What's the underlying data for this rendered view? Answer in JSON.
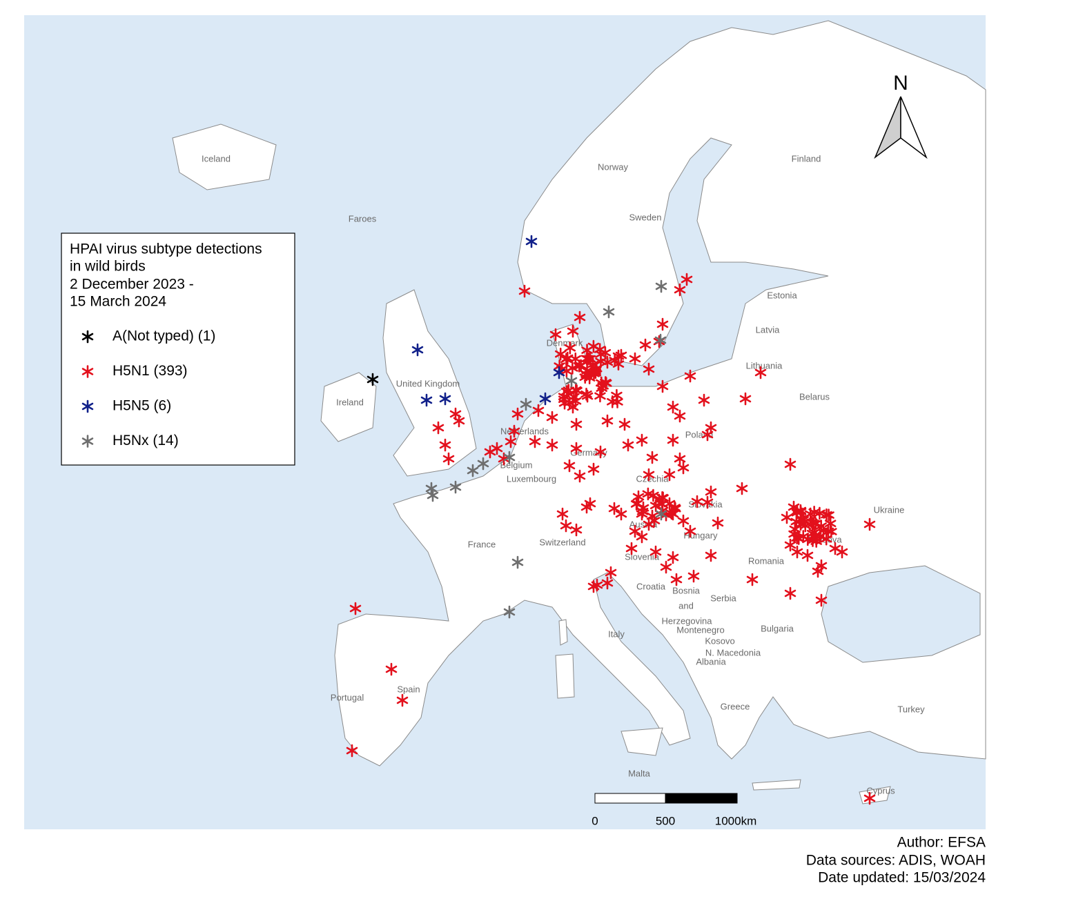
{
  "map": {
    "legend": {
      "title": [
        "HPAI virus subtype detections",
        "in wild birds",
        "2 December 2023 -",
        "15 March 2024"
      ],
      "entries": [
        {
          "label": "A(Not typed) (1)",
          "color": "#000000"
        },
        {
          "label": "H5N1 (393)",
          "color": "#e3101c"
        },
        {
          "label": "H5N5 (6)",
          "color": "#10208a"
        },
        {
          "label": "H5Nx (14)",
          "color": "#6e6e6e"
        }
      ]
    },
    "country_labels": [
      "Iceland",
      "Faroes",
      "Norway",
      "Sweden",
      "Finland",
      "Estonia",
      "Latvia",
      "Lithuania",
      "Belarus",
      "Denmark",
      "United Kingdom",
      "Ireland",
      "Netherlands",
      "Belgium",
      "Luxembourg",
      "Germany",
      "Poland",
      "Czechia",
      "Slovakia",
      "Ukraine",
      "Austria",
      "Hungary",
      "Moldova",
      "Romania",
      "Switzerland",
      "France",
      "Slovenia",
      "Croatia",
      "Bosnia",
      "and",
      "Herzegovina",
      "Serbia",
      "Montenegro",
      "Kosovo",
      "N. Macedonia",
      "Albania",
      "Bulgaria",
      "Italy",
      "Spain",
      "Portugal",
      "Greece",
      "Turkey",
      "Malta",
      "Cyprus"
    ],
    "scale_bar": {
      "labels": [
        "0",
        "500",
        "1000km"
      ]
    },
    "north_label": "N"
  },
  "footer": [
    "Author: EFSA",
    "Data sources: ADIS, WOAH",
    "Date updated: 15/03/2024"
  ]
}
